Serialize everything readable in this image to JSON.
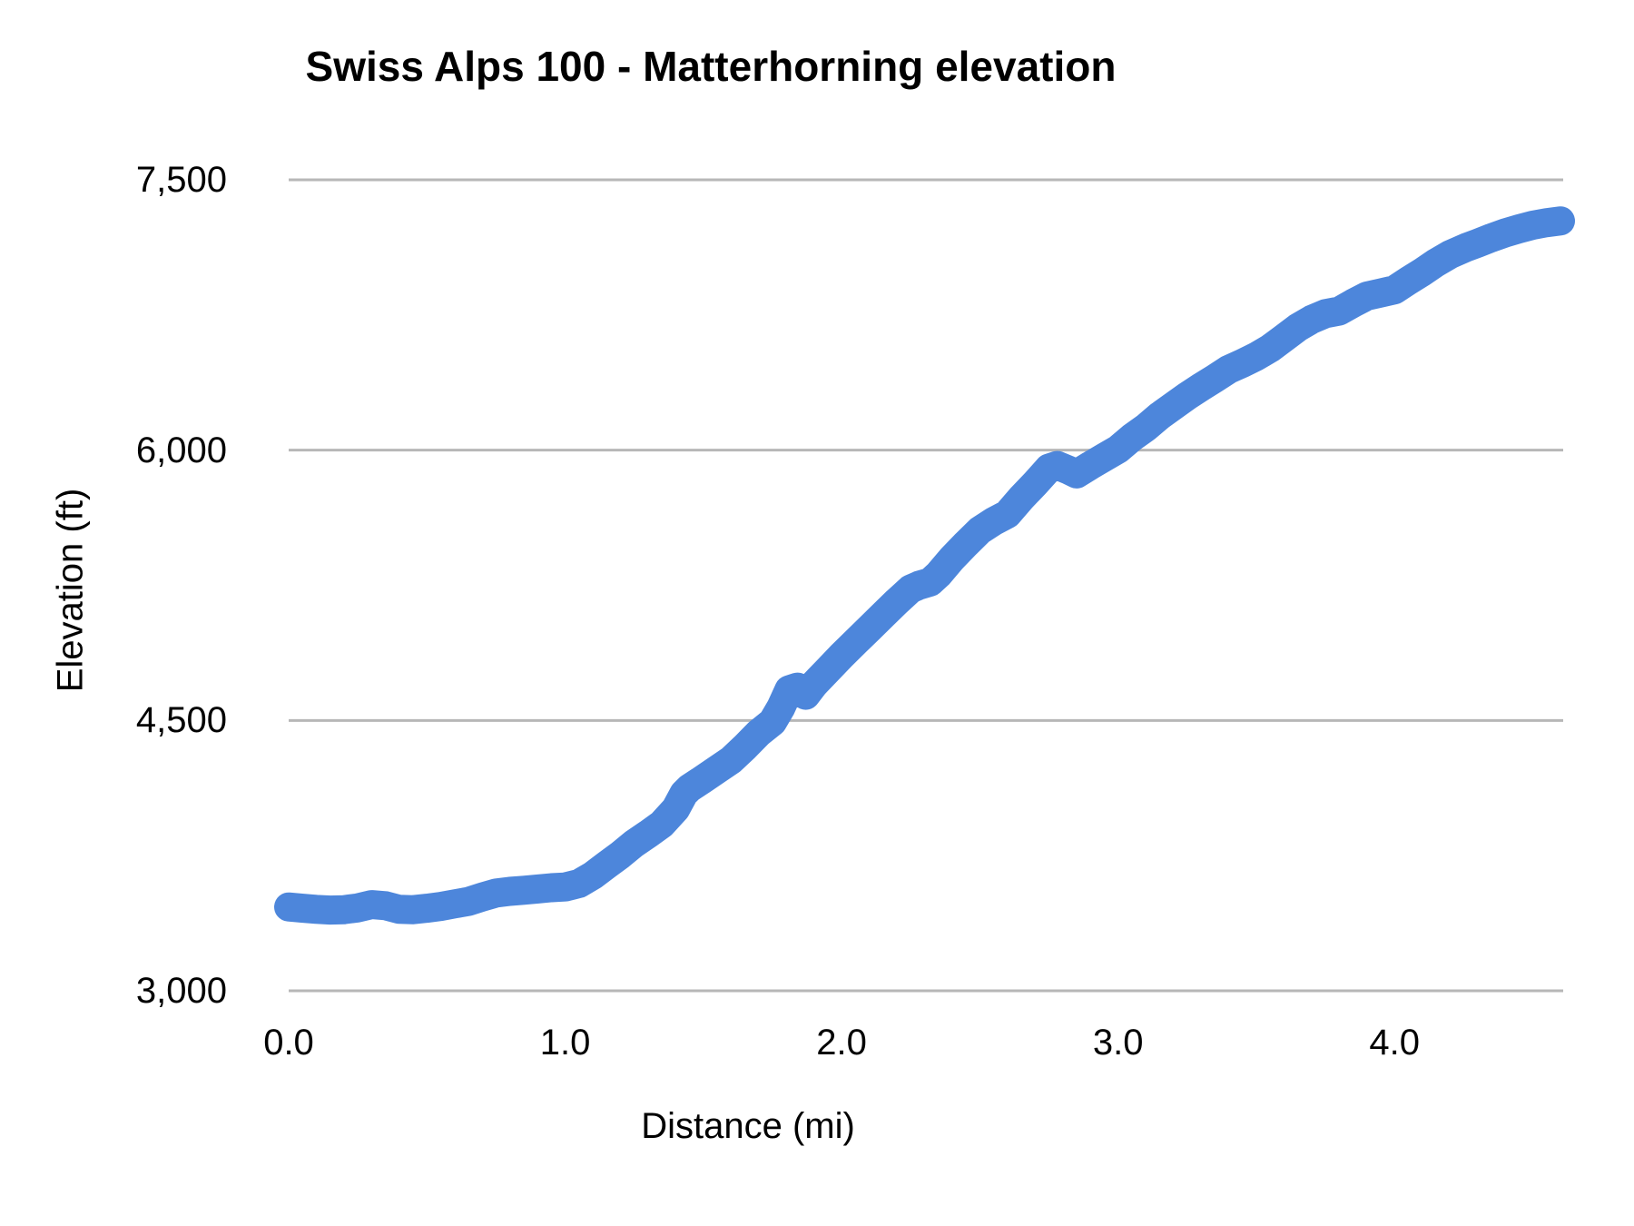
{
  "title": "Swiss Alps 100 - Matterhorning elevation",
  "colors": {
    "line": "#4d86db",
    "gridline": "#b7b7b7",
    "text": "#000000",
    "background": "#ffffff"
  },
  "chart_data": {
    "type": "line",
    "title": "Swiss Alps 100 - Matterhorning elevation",
    "xlabel": "Distance (mi)",
    "ylabel": "Elevation (ft)",
    "xlim": [
      0,
      4.61
    ],
    "ylim": [
      3000,
      7500
    ],
    "grid": "horizontal-only",
    "legend": "none",
    "x_ticks": [
      {
        "value": 0.0,
        "label": "0.0"
      },
      {
        "value": 1.0,
        "label": "1.0"
      },
      {
        "value": 2.0,
        "label": "2.0"
      },
      {
        "value": 3.0,
        "label": "3.0"
      },
      {
        "value": 4.0,
        "label": "4.0"
      }
    ],
    "y_ticks": [
      {
        "value": 3000,
        "label": "3,000"
      },
      {
        "value": 4500,
        "label": "4,500"
      },
      {
        "value": 6000,
        "label": "6,000"
      },
      {
        "value": 7500,
        "label": "7,500"
      }
    ],
    "series": [
      {
        "name": "elevation",
        "color": "#4d86db",
        "points": [
          [
            0.0,
            3465
          ],
          [
            0.05,
            3458
          ],
          [
            0.1,
            3452
          ],
          [
            0.15,
            3448
          ],
          [
            0.2,
            3450
          ],
          [
            0.25,
            3460
          ],
          [
            0.3,
            3478
          ],
          [
            0.35,
            3472
          ],
          [
            0.4,
            3452
          ],
          [
            0.45,
            3450
          ],
          [
            0.5,
            3458
          ],
          [
            0.55,
            3468
          ],
          [
            0.6,
            3482
          ],
          [
            0.65,
            3496
          ],
          [
            0.7,
            3520
          ],
          [
            0.75,
            3542
          ],
          [
            0.8,
            3552
          ],
          [
            0.85,
            3558
          ],
          [
            0.9,
            3565
          ],
          [
            0.95,
            3572
          ],
          [
            1.0,
            3576
          ],
          [
            1.05,
            3595
          ],
          [
            1.1,
            3640
          ],
          [
            1.15,
            3698
          ],
          [
            1.2,
            3755
          ],
          [
            1.25,
            3818
          ],
          [
            1.3,
            3870
          ],
          [
            1.35,
            3925
          ],
          [
            1.4,
            4010
          ],
          [
            1.43,
            4095
          ],
          [
            1.45,
            4125
          ],
          [
            1.5,
            4175
          ],
          [
            1.55,
            4228
          ],
          [
            1.6,
            4280
          ],
          [
            1.65,
            4352
          ],
          [
            1.7,
            4430
          ],
          [
            1.75,
            4492
          ],
          [
            1.78,
            4570
          ],
          [
            1.81,
            4670
          ],
          [
            1.84,
            4685
          ],
          [
            1.87,
            4640
          ],
          [
            1.9,
            4700
          ],
          [
            1.95,
            4780
          ],
          [
            2.0,
            4860
          ],
          [
            2.05,
            4935
          ],
          [
            2.1,
            5010
          ],
          [
            2.15,
            5085
          ],
          [
            2.2,
            5160
          ],
          [
            2.25,
            5230
          ],
          [
            2.28,
            5250
          ],
          [
            2.32,
            5268
          ],
          [
            2.35,
            5310
          ],
          [
            2.4,
            5400
          ],
          [
            2.45,
            5480
          ],
          [
            2.5,
            5555
          ],
          [
            2.55,
            5605
          ],
          [
            2.6,
            5645
          ],
          [
            2.65,
            5735
          ],
          [
            2.7,
            5815
          ],
          [
            2.75,
            5900
          ],
          [
            2.78,
            5915
          ],
          [
            2.82,
            5890
          ],
          [
            2.85,
            5868
          ],
          [
            2.9,
            5915
          ],
          [
            2.95,
            5960
          ],
          [
            3.0,
            6005
          ],
          [
            3.05,
            6070
          ],
          [
            3.1,
            6125
          ],
          [
            3.15,
            6190
          ],
          [
            3.2,
            6245
          ],
          [
            3.25,
            6300
          ],
          [
            3.3,
            6350
          ],
          [
            3.35,
            6398
          ],
          [
            3.4,
            6448
          ],
          [
            3.45,
            6482
          ],
          [
            3.5,
            6520
          ],
          [
            3.55,
            6565
          ],
          [
            3.6,
            6622
          ],
          [
            3.65,
            6680
          ],
          [
            3.7,
            6725
          ],
          [
            3.75,
            6757
          ],
          [
            3.8,
            6772
          ],
          [
            3.85,
            6815
          ],
          [
            3.9,
            6855
          ],
          [
            3.95,
            6872
          ],
          [
            4.0,
            6890
          ],
          [
            4.05,
            6940
          ],
          [
            4.1,
            6988
          ],
          [
            4.15,
            7040
          ],
          [
            4.2,
            7085
          ],
          [
            4.26,
            7125
          ],
          [
            4.3,
            7148
          ],
          [
            4.35,
            7178
          ],
          [
            4.4,
            7205
          ],
          [
            4.45,
            7228
          ],
          [
            4.5,
            7248
          ],
          [
            4.55,
            7262
          ],
          [
            4.6,
            7272
          ]
        ]
      }
    ]
  }
}
